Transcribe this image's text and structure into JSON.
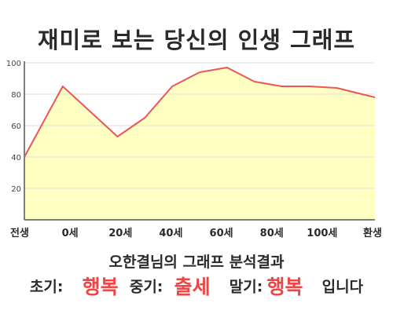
{
  "title": "재미로 보는 당신의 인생 그래프",
  "chart_data": {
    "type": "area",
    "x_categories": [
      "전생",
      "0세",
      "20세",
      "40세",
      "60세",
      "80세",
      "100세",
      "환생"
    ],
    "x": [
      -14,
      0,
      20,
      30,
      40,
      50,
      60,
      70,
      80,
      90,
      100,
      114
    ],
    "values": [
      40,
      85,
      53,
      65,
      85,
      94,
      97,
      88,
      85,
      85,
      84,
      78
    ],
    "yticks": [
      20,
      40,
      60,
      80,
      100
    ],
    "ylim": [
      0,
      100
    ],
    "grid": true,
    "colors": {
      "fill": "#ffffc2",
      "line": "#ee5555",
      "grid": "#dddddd",
      "axis": "#555555"
    }
  },
  "caption": "오한결님의 그래프 분석결과",
  "result": {
    "early_label": "초기:",
    "early_value": "행복",
    "mid_label": "중기:",
    "mid_value": "출세",
    "late_label": "말기:",
    "late_value": "행복",
    "suffix": "입니다"
  }
}
